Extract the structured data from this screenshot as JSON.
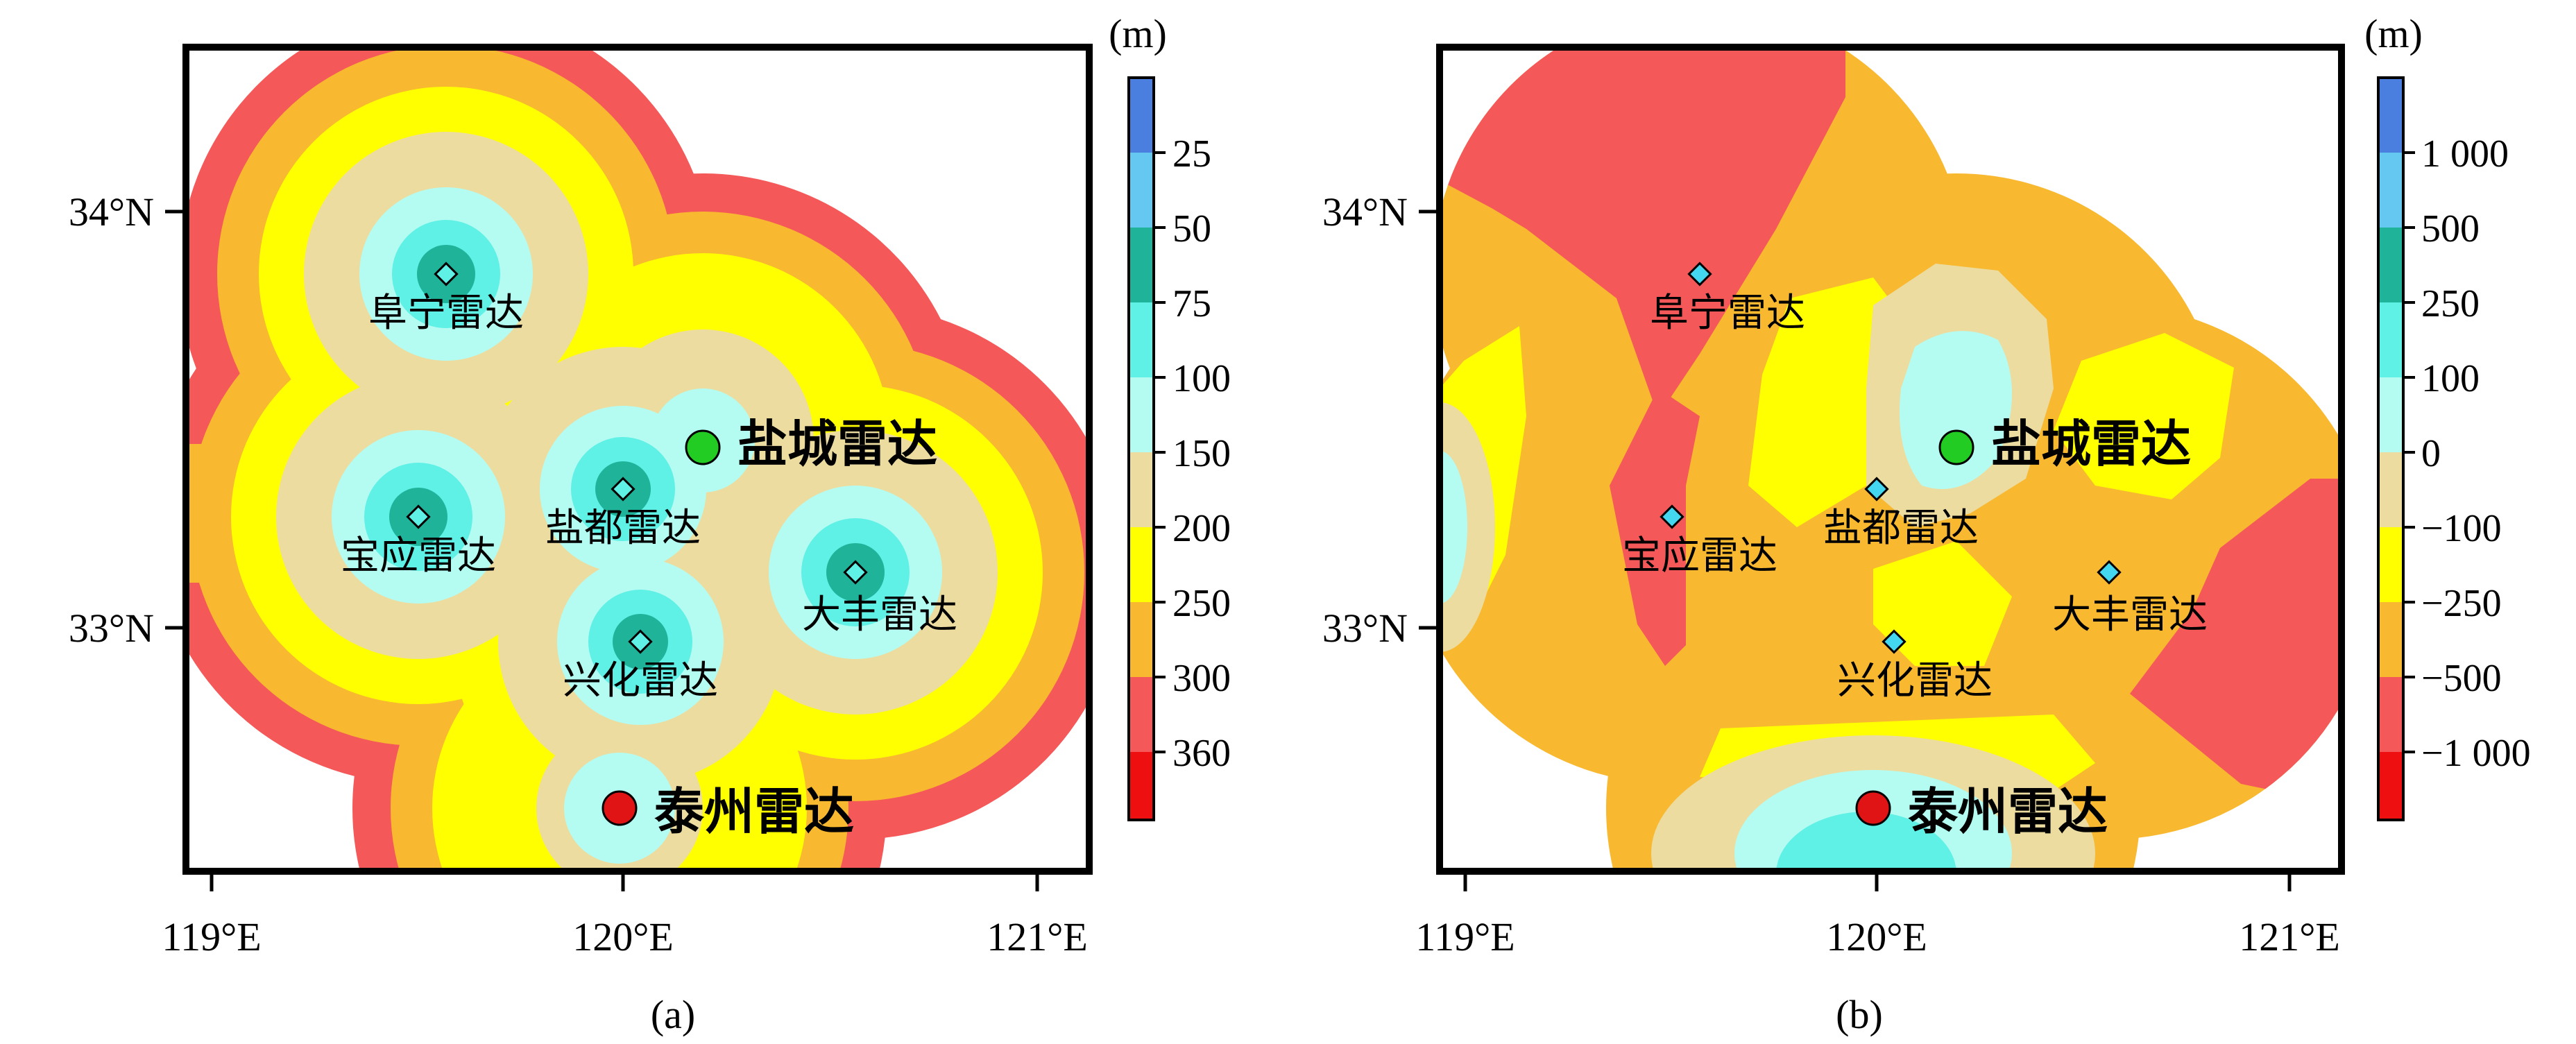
{
  "colors": {
    "c1": "#4a7fe0",
    "c2": "#64c8f0",
    "c3": "#1fb39a",
    "c4": "#5ff0e6",
    "c5": "#b4fcf2",
    "c6": "#ecdca0",
    "c7": "#ffff00",
    "c8": "#f8b830",
    "c9": "#f45858",
    "c10": "#ee1010",
    "radar_main_green": "#22cc22",
    "radar_main_red": "#e01414",
    "radar_marker": "#44d8f0"
  },
  "panels": [
    {
      "caption": "(a)",
      "unit": "(m)",
      "x_ticks": [
        "119°E",
        "120°E",
        "121°E"
      ],
      "y_ticks": [
        "34°N",
        "33°N"
      ],
      "colorbar_labels": [
        "25",
        "50",
        "75",
        "100",
        "150",
        "200",
        "250",
        "300",
        "360"
      ],
      "radars": [
        {
          "name": "阜宁雷达",
          "type": "marker"
        },
        {
          "name": "宝应雷达",
          "type": "marker"
        },
        {
          "name": "盐都雷达",
          "type": "marker"
        },
        {
          "name": "大丰雷达",
          "type": "marker"
        },
        {
          "name": "兴化雷达",
          "type": "marker"
        },
        {
          "name": "盐城雷达",
          "type": "main",
          "color": "green"
        },
        {
          "name": "泰州雷达",
          "type": "main",
          "color": "red"
        }
      ]
    },
    {
      "caption": "(b)",
      "unit": "(m)",
      "x_ticks": [
        "119°E",
        "120°E",
        "121°E"
      ],
      "y_ticks": [
        "34°N",
        "33°N"
      ],
      "colorbar_labels": [
        "1 000",
        "500",
        "250",
        "100",
        "0",
        "−100",
        "−250",
        "−500",
        "−1 000"
      ],
      "radars": [
        {
          "name": "阜宁雷达",
          "type": "marker"
        },
        {
          "name": "宝应雷达",
          "type": "marker"
        },
        {
          "name": "盐都雷达",
          "type": "marker"
        },
        {
          "name": "大丰雷达",
          "type": "marker"
        },
        {
          "name": "兴化雷达",
          "type": "marker"
        },
        {
          "name": "盐城雷达",
          "type": "main",
          "color": "green"
        },
        {
          "name": "泰州雷达",
          "type": "main",
          "color": "red"
        }
      ]
    }
  ]
}
